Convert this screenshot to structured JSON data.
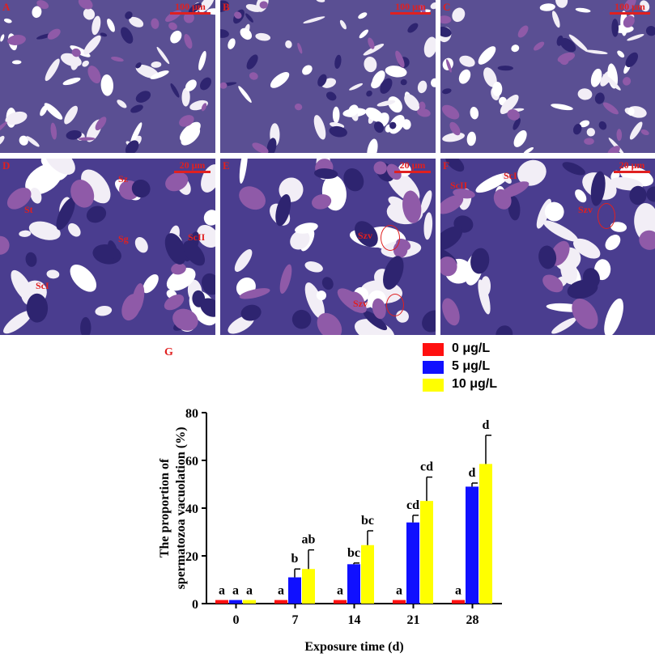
{
  "panels": [
    {
      "id": "A",
      "scale": "100 μm"
    },
    {
      "id": "B",
      "scale": "100 μm"
    },
    {
      "id": "C",
      "scale": "100 μm"
    },
    {
      "id": "D",
      "scale": "20 μm"
    },
    {
      "id": "E",
      "scale": "20 μm"
    },
    {
      "id": "F",
      "scale": "20 μm"
    }
  ],
  "annotations": {
    "D": [
      "Sz",
      "St",
      "Sg",
      "ScII",
      "ScI"
    ],
    "E": [
      "Szv",
      "Szv"
    ],
    "F": [
      "ScII",
      "ScI",
      "Szv"
    ]
  },
  "g_label": "G",
  "colors": {
    "red": "#ff1010",
    "blue": "#1010ff",
    "yellow": "#ffff00",
    "annotation": "#e02020"
  },
  "chart_data": {
    "type": "bar",
    "xlabel": "Exposure time (d)",
    "ylabel_line1": "The proportion of",
    "ylabel_line2": "spermatozoa vacuolation (%)",
    "categories": [
      "0",
      "7",
      "14",
      "21",
      "28"
    ],
    "yticks": [
      "0",
      "20",
      "40",
      "60",
      "80"
    ],
    "ylim": [
      0,
      80
    ],
    "series": [
      {
        "name": "0 μg/L",
        "color": "#ff1010",
        "values": [
          1.5,
          1.5,
          1.5,
          1.5,
          1.5
        ],
        "errors": [
          0,
          0,
          0,
          0,
          0
        ],
        "labels": [
          "a",
          "a",
          "a",
          "a",
          "a"
        ]
      },
      {
        "name": "5 μg/L",
        "color": "#1010ff",
        "values": [
          1.5,
          11,
          16.5,
          34,
          49
        ],
        "errors": [
          0,
          3.5,
          0.5,
          3,
          1.5
        ],
        "labels": [
          "a",
          "b",
          "bc",
          "cd",
          "d"
        ]
      },
      {
        "name": "10 μg/L",
        "color": "#ffff00",
        "values": [
          1.5,
          14.5,
          24.5,
          43,
          58.5
        ],
        "errors": [
          0,
          8,
          6,
          10,
          12
        ],
        "labels": [
          "a",
          "ab",
          "bc",
          "cd",
          "d"
        ]
      }
    ]
  }
}
